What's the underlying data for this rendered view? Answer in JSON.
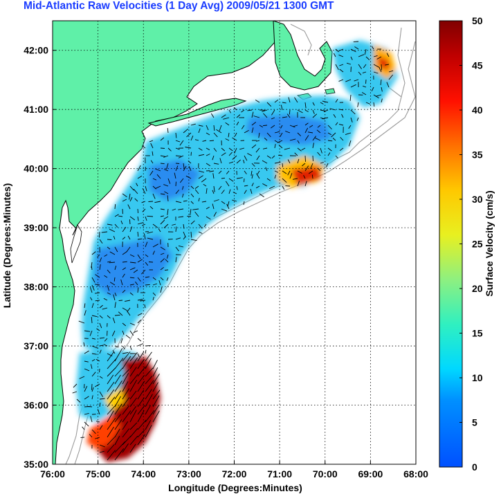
{
  "title": "Mid-Atlantic Raw Velocities (1 Day Avg) 2009/05/21 1300 GMT",
  "axes": {
    "xlabel": "Longitude (Degrees:Minutes)",
    "ylabel": "Latitude (Degrees:Minutes)",
    "xticks": [
      "76:00",
      "75:00",
      "74:00",
      "73:00",
      "72:00",
      "71:00",
      "70:00",
      "69:00",
      "68:00"
    ],
    "yticks": [
      "35:00",
      "36:00",
      "37:00",
      "38:00",
      "39:00",
      "40:00",
      "41:00",
      "42:00"
    ],
    "xlim": [
      -76,
      -68
    ],
    "ylim": [
      35,
      42.5
    ],
    "grid": "dotted"
  },
  "colorbar": {
    "label": "Surface Velocity (cm/s)",
    "ticks": [
      "0",
      "5",
      "10",
      "15",
      "20",
      "25",
      "30",
      "35",
      "40",
      "45",
      "50"
    ],
    "range": [
      0,
      50
    ]
  },
  "colors": {
    "title": "#1a3cff",
    "land": "#5ff0a8",
    "coast": "#000000",
    "bathymetry": "#9a9a9a"
  }
}
